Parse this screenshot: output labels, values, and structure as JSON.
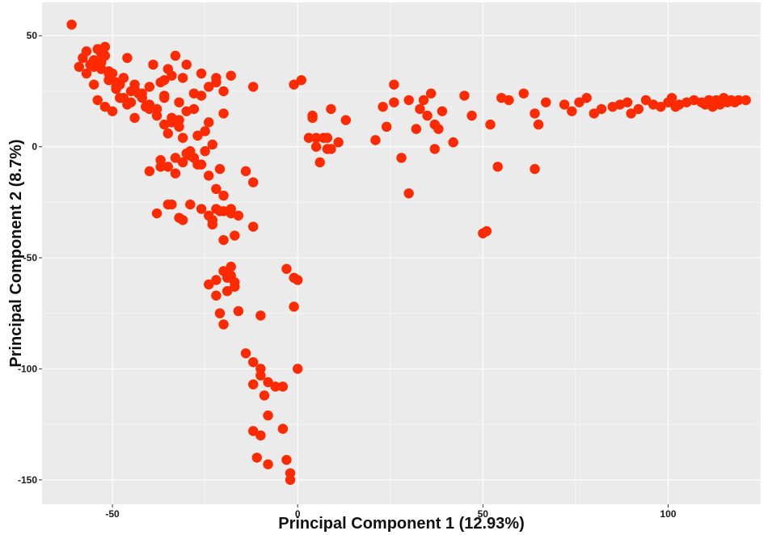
{
  "chart_data": {
    "type": "scatter",
    "title": "",
    "xlabel": "Principal Component 1 (12.93%)",
    "ylabel": "Principal Component 2 (8.7%)",
    "xlim": [
      -69,
      125
    ],
    "ylim": [
      -161,
      65
    ],
    "xticks": [
      -50,
      0,
      50,
      100
    ],
    "yticks": [
      50,
      0,
      -50,
      -100,
      -150
    ],
    "xtick_labels": [
      "-50",
      "0",
      "50",
      "100"
    ],
    "ytick_labels": [
      "50",
      "0",
      "-50",
      "-100",
      "-150"
    ],
    "grid": true,
    "legend": "none",
    "colors": {
      "panel": "#ebebeb",
      "grid": "#ffffff",
      "point": "#ff2a00"
    },
    "series": [
      {
        "x": [
          -61,
          -59,
          -58,
          -57,
          -56,
          -55,
          -54,
          -53,
          -52,
          -51,
          -50,
          -49,
          -48,
          -47,
          -46,
          -55,
          -53,
          -51,
          -49,
          -47,
          -45,
          -57,
          -55,
          -53,
          -51,
          -49,
          -47,
          -45,
          -43,
          -41,
          -39,
          -37,
          -35,
          -33,
          -31,
          -54,
          -52,
          -50,
          -48,
          -46,
          -44,
          -42,
          -40,
          -38,
          -36,
          -34,
          -32,
          -52,
          -48,
          -44,
          -40,
          -36,
          -30,
          -28,
          -26,
          -24,
          -22,
          -20,
          -42,
          -38,
          -34,
          -30,
          -26,
          -22,
          -18,
          -12,
          -44,
          -40,
          -36,
          -32,
          -28,
          -24,
          -20,
          -35,
          -33,
          -31,
          -29,
          -27,
          -25,
          -23,
          -21,
          -37,
          -35,
          -33,
          -31,
          -29,
          -27,
          -25,
          -36,
          -34,
          -32,
          -30,
          -28,
          -26,
          -24,
          -22,
          -20,
          -18,
          -16,
          -38,
          -35,
          -32,
          -29,
          -26,
          -23,
          -20,
          -17,
          -14,
          -12,
          -40,
          -37,
          -34,
          -31,
          -24,
          -22,
          -20,
          -18,
          -12,
          -23,
          -21,
          -19,
          -17,
          -24,
          -22,
          -20,
          -18,
          -22,
          -21,
          -20,
          -19,
          -18,
          -17,
          -10,
          -16,
          -14,
          -12,
          -10,
          -8,
          -6,
          -10,
          -12,
          -8,
          -4,
          -12,
          -10,
          -9,
          -11,
          -8,
          -2,
          -2,
          -3,
          -4,
          -1,
          0,
          -3,
          -1,
          0,
          -1,
          1,
          3,
          5,
          6,
          7,
          9,
          11,
          8,
          4,
          4,
          5,
          9,
          8,
          13,
          21,
          23,
          24,
          26,
          28,
          30,
          32,
          34,
          36,
          37,
          39,
          42,
          45,
          47,
          52,
          54,
          55,
          57,
          61,
          64,
          65,
          67,
          72,
          74,
          76,
          78,
          80,
          82,
          85,
          87,
          89,
          90,
          92,
          94,
          96,
          98,
          100,
          101,
          102,
          103,
          105,
          107,
          109,
          110,
          111,
          112,
          113,
          114,
          115,
          116,
          117,
          118,
          119,
          121,
          26,
          30,
          33,
          35,
          37,
          38,
          50,
          51,
          64
        ],
        "y": [
          55,
          36,
          40,
          43,
          37,
          39,
          44,
          35,
          41,
          30,
          33,
          29,
          28,
          31,
          40,
          36,
          38,
          33,
          27,
          22,
          25,
          33,
          28,
          42,
          34,
          26,
          31,
          20,
          24,
          18,
          37,
          29,
          35,
          41,
          31,
          21,
          18,
          16,
          22,
          19,
          28,
          24,
          27,
          17,
          23,
          32,
          20,
          45,
          28,
          26,
          17,
          30,
          37,
          24,
          33,
          27,
          31,
          25,
          22,
          14,
          11,
          16,
          23,
          29,
          32,
          27,
          13,
          19,
          22,
          9,
          17,
          11,
          15,
          6,
          -5,
          4,
          -2,
          -8,
          7,
          1,
          -10,
          -6,
          -9,
          -12,
          -7,
          -4,
          5,
          -2,
          10,
          13,
          12,
          -3,
          -5,
          -8,
          -13,
          -19,
          -22,
          -28,
          -31,
          -30,
          -26,
          -32,
          -26,
          -28,
          -35,
          -29,
          -40,
          -11,
          -16,
          -11,
          -9,
          -26,
          -33,
          -31,
          -28,
          -42,
          -30,
          -36,
          -33,
          -29,
          -59,
          -61,
          -62,
          -60,
          -56,
          -54,
          -67,
          -75,
          -80,
          -65,
          -58,
          -63,
          -76,
          -74,
          -93,
          -97,
          -103,
          -106,
          -108,
          -100,
          -107,
          -121,
          -127,
          -128,
          -130,
          -112,
          -140,
          -143,
          -147,
          -150,
          -141,
          -108,
          -59,
          -60,
          -55,
          -72,
          -100,
          28,
          30,
          4,
          0,
          -7,
          4,
          -1,
          2,
          4,
          14,
          13,
          4,
          17,
          -1,
          12,
          3,
          18,
          9,
          28,
          -5,
          -21,
          8,
          21,
          24,
          10,
          16,
          2,
          23,
          14,
          10,
          -9,
          22,
          21,
          24,
          15,
          10,
          20,
          19,
          16,
          20,
          22,
          15,
          17,
          18,
          19,
          20,
          15,
          17,
          21,
          19,
          18,
          20,
          22,
          18,
          19,
          20,
          21,
          20,
          19,
          21,
          18,
          21,
          19,
          22,
          20,
          21,
          20,
          21,
          21,
          20,
          21,
          17,
          14,
          -1,
          8,
          -39,
          -38,
          -10
        ]
      }
    ]
  }
}
